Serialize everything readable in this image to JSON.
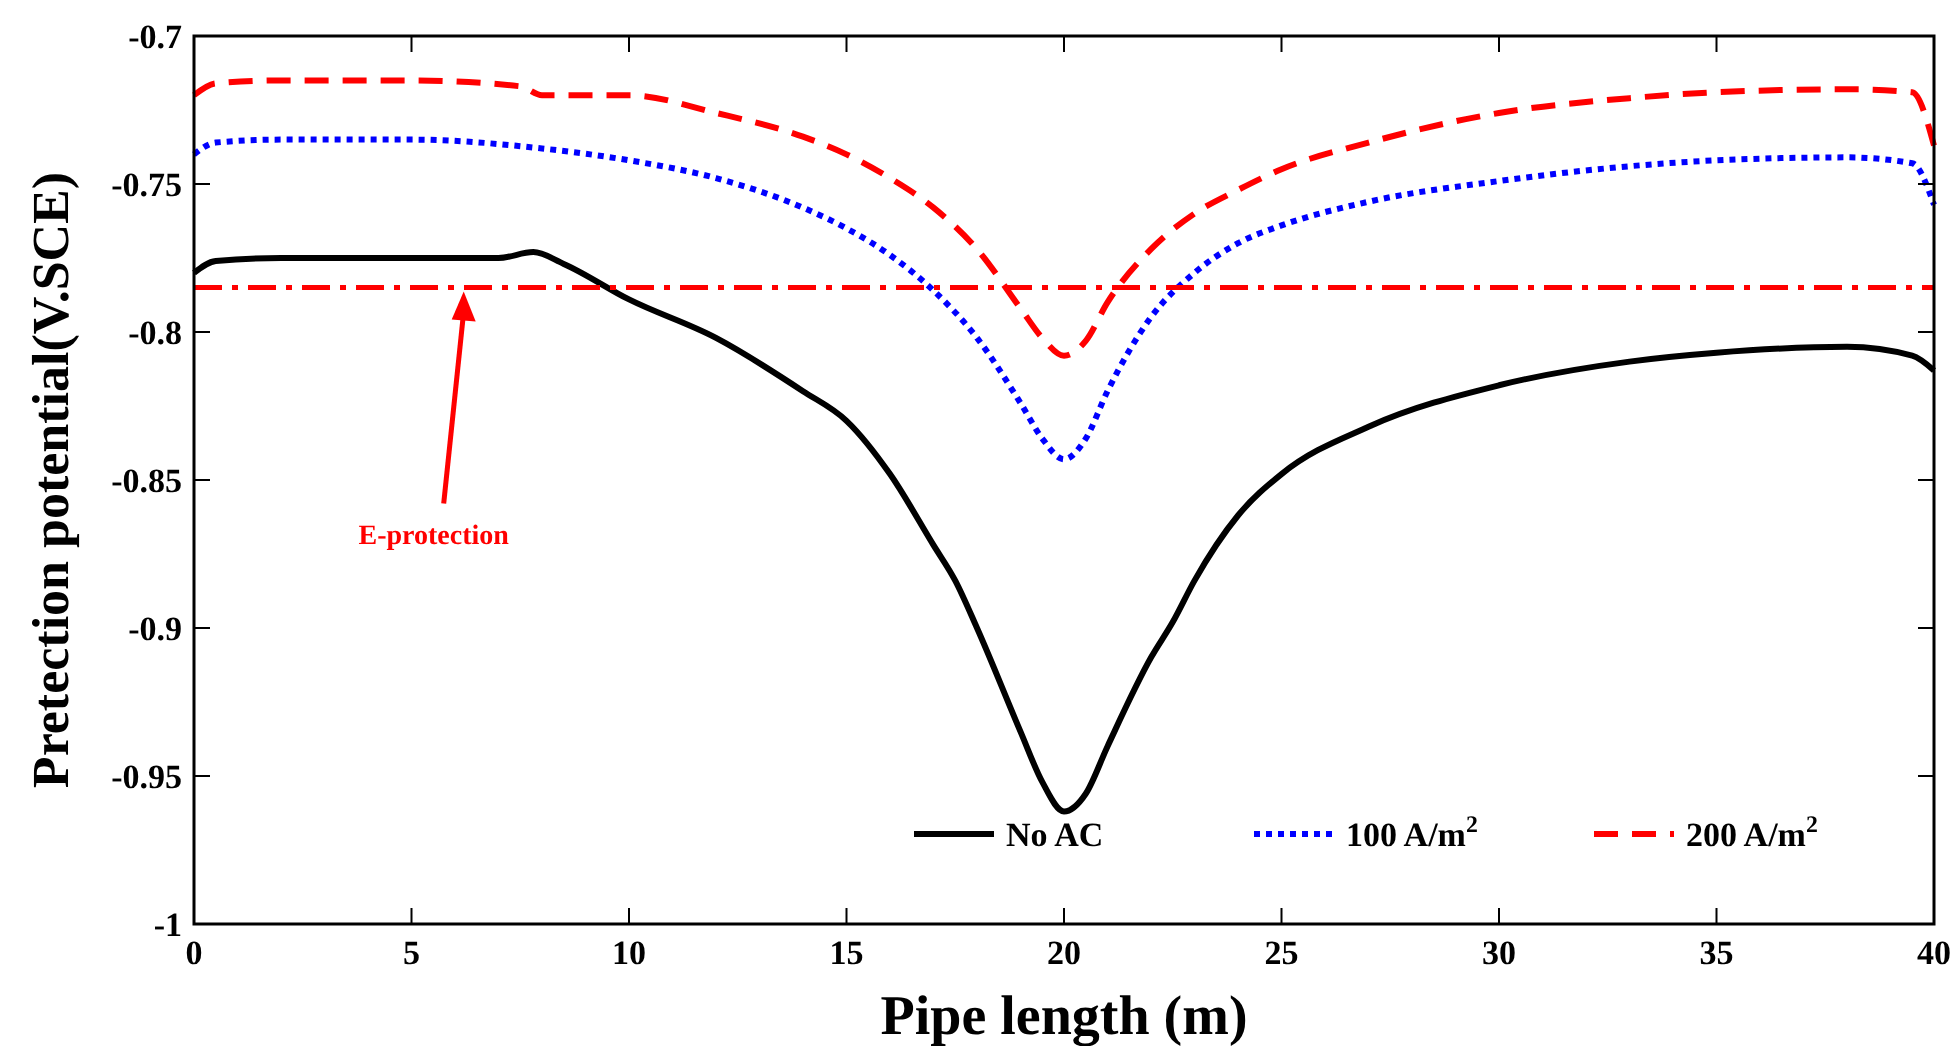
{
  "chart_data": {
    "type": "line",
    "xlabel": "Pipe length (m)",
    "ylabel": "Pretection potential(V.SCE)",
    "xlim": [
      0,
      40
    ],
    "ylim": [
      -1,
      -0.7
    ],
    "xticks": [
      0,
      5,
      10,
      15,
      20,
      25,
      30,
      35,
      40
    ],
    "yticks": [
      -1,
      -0.95,
      -0.9,
      -0.85,
      -0.8,
      -0.75,
      -0.7
    ],
    "grid": false,
    "legend": "bottom right",
    "series": [
      {
        "name": "No AC",
        "color": "#000000",
        "line_style": "solid",
        "x": [
          0,
          0.5,
          2,
          5,
          7,
          7.8,
          8.5,
          10,
          12,
          14,
          15,
          16,
          17,
          17.5,
          18,
          19,
          19.5,
          20,
          20.5,
          21,
          22,
          22.5,
          23,
          24,
          25,
          27,
          30,
          33,
          35,
          38,
          39.5,
          40
        ],
        "values": [
          -0.78,
          -0.776,
          -0.775,
          -0.775,
          -0.775,
          -0.773,
          -0.777,
          -0.789,
          -0.802,
          -0.82,
          -0.83,
          -0.848,
          -0.872,
          -0.884,
          -0.9,
          -0.935,
          -0.952,
          -0.962,
          -0.956,
          -0.94,
          -0.91,
          -0.898,
          -0.884,
          -0.862,
          -0.848,
          -0.832,
          -0.818,
          -0.81,
          -0.807,
          -0.805,
          -0.808,
          -0.813
        ]
      },
      {
        "name": "100 A/m$^{2}$",
        "color": "#0000ff",
        "line_style": "dotted",
        "x": [
          0,
          0.5,
          2,
          5,
          8,
          10,
          12,
          14,
          15,
          16,
          17,
          18,
          19,
          19.5,
          20,
          20.5,
          21,
          22,
          23,
          24,
          25,
          27,
          30,
          33,
          35,
          38,
          39.5,
          40
        ],
        "values": [
          -0.74,
          -0.736,
          -0.735,
          -0.735,
          -0.738,
          -0.742,
          -0.748,
          -0.758,
          -0.765,
          -0.774,
          -0.786,
          -0.802,
          -0.824,
          -0.836,
          -0.843,
          -0.836,
          -0.82,
          -0.795,
          -0.78,
          -0.77,
          -0.764,
          -0.756,
          -0.749,
          -0.744,
          -0.742,
          -0.741,
          -0.743,
          -0.757
        ]
      },
      {
        "name": "200 A/m$^{2}$",
        "color": "#ff0000",
        "line_style": "dashed",
        "x": [
          0,
          0.5,
          2,
          5,
          7.5,
          8,
          10,
          12,
          14,
          15,
          16,
          17,
          18,
          19,
          19.5,
          20,
          20.5,
          21,
          22,
          23,
          24,
          25,
          27,
          30,
          33,
          35,
          38,
          39.5,
          40
        ],
        "values": [
          -0.72,
          -0.716,
          -0.715,
          -0.715,
          -0.717,
          -0.72,
          -0.72,
          -0.726,
          -0.734,
          -0.74,
          -0.748,
          -0.758,
          -0.772,
          -0.792,
          -0.802,
          -0.808,
          -0.803,
          -0.79,
          -0.772,
          -0.76,
          -0.752,
          -0.745,
          -0.736,
          -0.726,
          -0.721,
          -0.719,
          -0.718,
          -0.719,
          -0.737
        ]
      }
    ],
    "ref_lines": [
      {
        "axis": "y",
        "value": -0.785,
        "label": "E-protection",
        "color": "#ff0000",
        "line_style": "dashdot"
      }
    ]
  }
}
